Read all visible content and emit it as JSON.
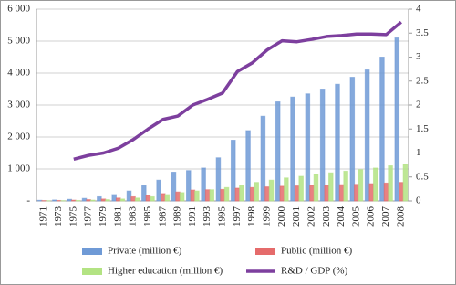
{
  "chart_data": {
    "type": "bar_line",
    "categories": [
      "1971",
      "1973",
      "1975",
      "1977",
      "1979",
      "1981",
      "1983",
      "1985",
      "1987",
      "1989",
      "1991",
      "1993",
      "1995",
      "1997",
      "1998",
      "1999",
      "2000",
      "2001",
      "2002",
      "2003",
      "2004",
      "2005",
      "2006",
      "2007",
      "2008"
    ],
    "series": [
      {
        "name": "Private (million €)",
        "color": "#6f9ad6",
        "values": [
          20,
          30,
          50,
          80,
          130,
          200,
          310,
          480,
          650,
          900,
          950,
          1030,
          1350,
          1900,
          2200,
          2650,
          3100,
          3250,
          3350,
          3500,
          3650,
          3870,
          4100,
          4500,
          5100
        ]
      },
      {
        "name": "Public (million €)",
        "color": "#e56b6b",
        "values": [
          10,
          15,
          25,
          40,
          60,
          90,
          130,
          180,
          230,
          280,
          340,
          350,
          360,
          400,
          420,
          440,
          460,
          470,
          490,
          500,
          510,
          520,
          540,
          560,
          580
        ]
      },
      {
        "name": "Higher education (million €)",
        "color": "#b3e383",
        "values": [
          5,
          8,
          15,
          25,
          40,
          60,
          90,
          130,
          200,
          260,
          310,
          350,
          420,
          500,
          580,
          650,
          720,
          770,
          830,
          880,
          930,
          980,
          1030,
          1100,
          1150
        ]
      },
      {
        "name": "R&D / GDP (%)",
        "color": "#7d3f9e",
        "axis": "y2",
        "type": "line",
        "values": [
          null,
          null,
          0.87,
          0.95,
          1.0,
          1.1,
          1.28,
          1.5,
          1.7,
          1.77,
          2.0,
          2.12,
          2.25,
          2.7,
          2.88,
          3.15,
          3.34,
          3.32,
          3.37,
          3.43,
          3.45,
          3.48,
          3.48,
          3.47,
          3.73
        ]
      }
    ],
    "ylim": [
      0,
      6000
    ],
    "yticks": [
      {
        "value": 0,
        "label": "-"
      },
      {
        "value": 1000,
        "label": "1 000"
      },
      {
        "value": 2000,
        "label": "2 000"
      },
      {
        "value": 3000,
        "label": "3 000"
      },
      {
        "value": 4000,
        "label": "4 000"
      },
      {
        "value": 5000,
        "label": "5 000"
      },
      {
        "value": 6000,
        "label": "6 000"
      }
    ],
    "y2lim": [
      0,
      4
    ],
    "y2ticks": [
      0,
      0.5,
      1,
      1.5,
      2,
      2.5,
      3,
      3.5,
      4
    ],
    "grid": true
  }
}
